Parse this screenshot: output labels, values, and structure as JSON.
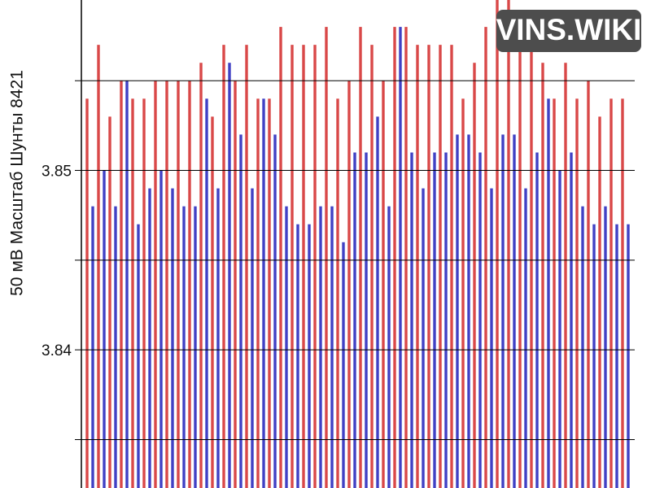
{
  "chart_data": {
    "type": "bar",
    "y_label": "50 мВ Масштаб  Шунты 8421",
    "watermark": "VINS.WIKI",
    "categories": [
      null,
      null,
      null,
      null,
      null,
      null,
      null,
      null,
      null,
      null,
      null,
      null,
      null,
      null,
      null,
      null,
      null,
      null,
      null,
      null,
      null,
      null,
      null,
      null,
      null,
      null,
      null,
      null,
      null,
      null,
      null,
      null,
      null,
      null,
      null,
      null,
      null,
      null,
      null,
      null,
      null,
      null,
      null,
      null,
      null,
      null,
      null,
      null
    ],
    "series": [
      {
        "color": "#d94848",
        "values": [
          3.854,
          3.857,
          3.853,
          3.855,
          3.854,
          3.854,
          3.855,
          3.855,
          3.855,
          3.855,
          3.856,
          3.853,
          3.857,
          3.855,
          3.857,
          3.854,
          3.854,
          3.858,
          3.857,
          3.857,
          3.857,
          3.858,
          3.854,
          3.855,
          3.858,
          3.857,
          3.855,
          3.858,
          3.858,
          3.857,
          3.857,
          3.857,
          3.857,
          3.854,
          3.856,
          3.858,
          3.86,
          3.86,
          3.858,
          3.857,
          3.856,
          3.854,
          3.856,
          3.854,
          3.855,
          3.853,
          3.854,
          3.854
        ]
      },
      {
        "color": "#4040c4",
        "values": [
          3.848,
          3.85,
          3.848,
          3.855,
          3.847,
          3.849,
          3.85,
          3.849,
          3.848,
          3.848,
          3.854,
          3.849,
          3.856,
          3.852,
          3.849,
          3.854,
          3.852,
          3.848,
          3.847,
          3.847,
          3.848,
          3.848,
          3.846,
          3.851,
          3.851,
          3.853,
          3.848,
          3.858,
          3.851,
          3.849,
          3.851,
          3.851,
          3.852,
          3.852,
          3.851,
          3.849,
          3.852,
          3.852,
          3.849,
          3.851,
          3.854,
          3.85,
          3.851,
          3.848,
          3.847,
          3.848,
          3.847,
          3.847
        ]
      }
    ],
    "ylim": [
      3.8323,
      3.8595
    ],
    "yticks": [
      3.84,
      3.85
    ],
    "minor_yticks": [
      3.835,
      3.845,
      3.855
    ],
    "grid": true
  }
}
